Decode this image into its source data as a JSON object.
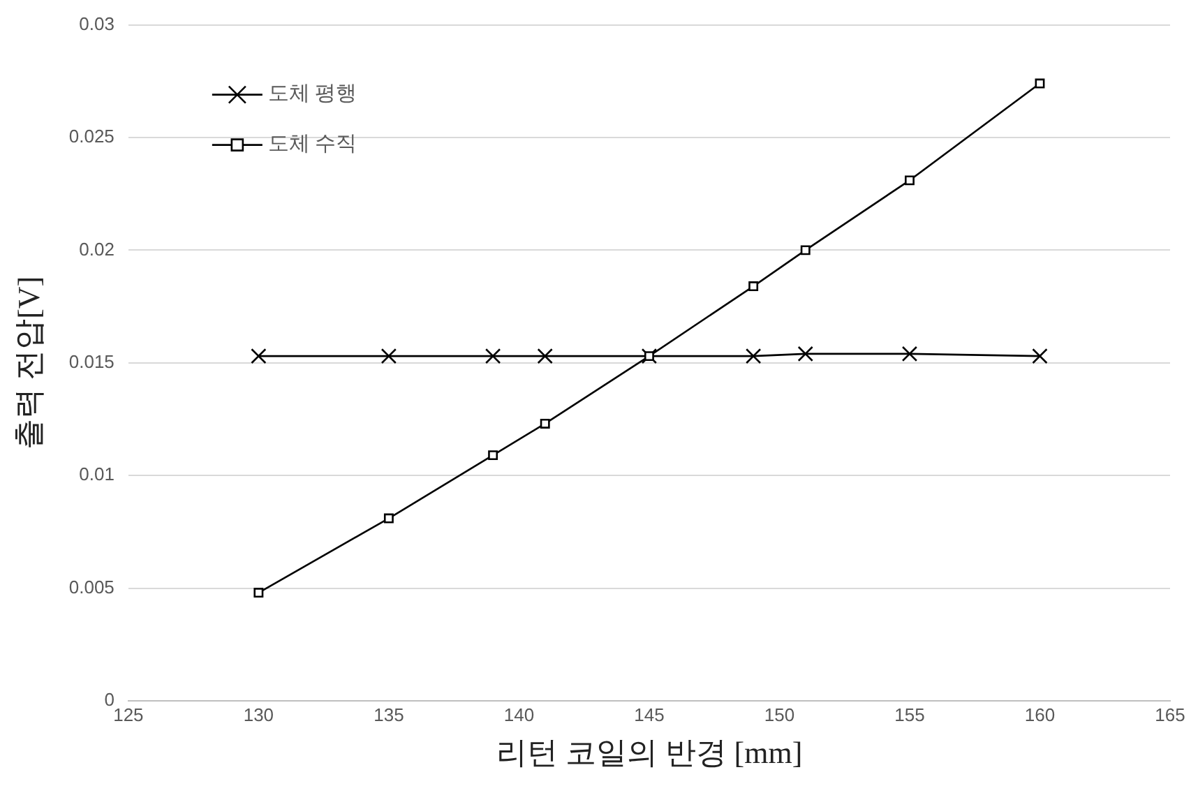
{
  "chart_data": {
    "type": "line",
    "xlabel": "리턴 코일의 반경 [mm]",
    "ylabel": "출력 전압[V]",
    "xlim": [
      125,
      165
    ],
    "xticks": [
      125,
      130,
      135,
      140,
      145,
      150,
      155,
      160,
      165
    ],
    "ylim": [
      0,
      0.03
    ],
    "yticks": [
      0,
      0.005,
      0.01,
      0.015,
      0.02,
      0.025,
      0.03
    ],
    "grid": "y",
    "legend": "top left",
    "line_style": "solid",
    "x": [
      130,
      135,
      139,
      141,
      145,
      149,
      151,
      155,
      160
    ],
    "series": [
      {
        "name": "도체 평행",
        "color": "#000000",
        "marker": "cross",
        "values": [
          0.0153,
          0.0153,
          0.0153,
          0.0153,
          0.0153,
          0.0153,
          0.0154,
          0.0154,
          0.0153
        ]
      },
      {
        "name": "도체 수직",
        "color": "#000000",
        "marker": "square",
        "values": [
          0.0048,
          0.0081,
          0.0109,
          0.0123,
          0.0153,
          0.0184,
          0.02,
          0.0231,
          0.0274
        ]
      }
    ]
  }
}
